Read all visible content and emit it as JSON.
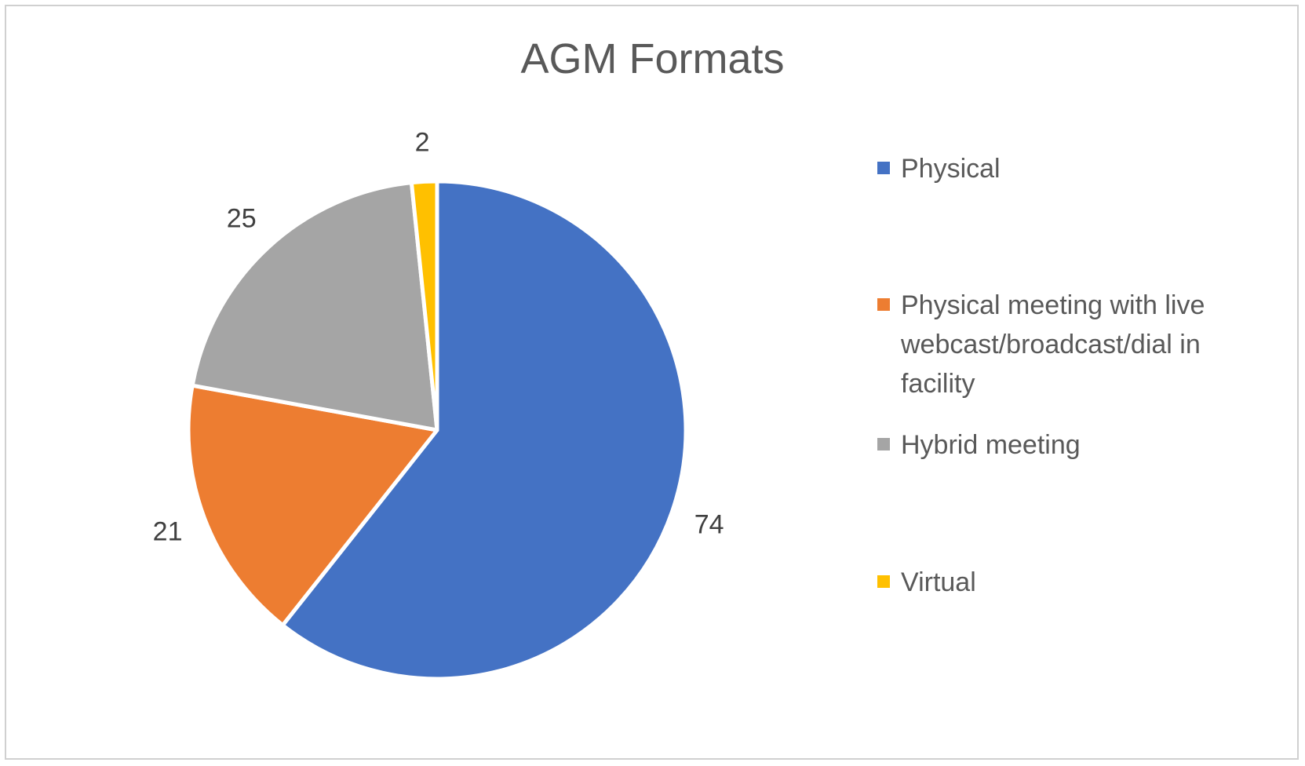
{
  "chart_data": {
    "type": "pie",
    "title": "AGM Formats",
    "categories": [
      "Physical",
      "Physical meeting with live webcast/broadcast/dial in facility",
      "Hybrid meeting",
      "Virtual"
    ],
    "values": [
      74,
      21,
      25,
      2
    ],
    "data_labels": [
      "74",
      "21",
      "25",
      "2"
    ],
    "colors": [
      "#4472C4",
      "#ED7D31",
      "#A5A5A5",
      "#FFC000"
    ],
    "start_angle_deg": 0,
    "direction": "clockwise",
    "legend_position": "right"
  }
}
